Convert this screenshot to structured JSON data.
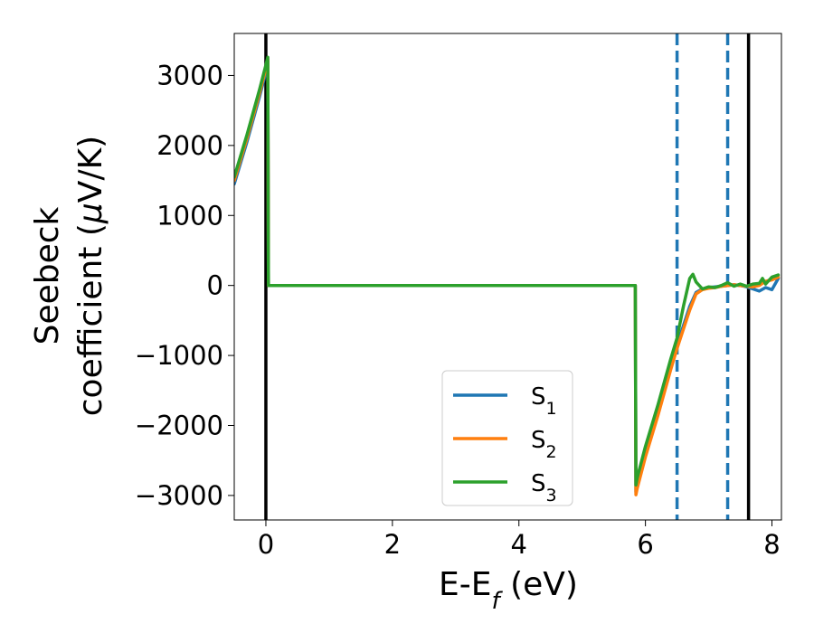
{
  "chart_data": {
    "type": "line",
    "xlabel_main": "E-E",
    "xlabel_sub": "f",
    "xlabel_unit": " (eV)",
    "ylabel_line1": "Seebeck",
    "ylabel_line2_text": "coefficient  (",
    "ylabel_line2_mu": "μ",
    "ylabel_line2_unit": "V/K)",
    "xlim": [
      -0.5,
      8.15
    ],
    "ylim": [
      -3350,
      3600
    ],
    "xticks": [
      0,
      2,
      4,
      6,
      8
    ],
    "yticks": [
      -3000,
      -2000,
      -1000,
      0,
      1000,
      2000,
      3000
    ],
    "xtick_labels": [
      "0",
      "2",
      "4",
      "6",
      "8"
    ],
    "ytick_labels": [
      "−3000",
      "−2000",
      "−1000",
      "0",
      "1000",
      "2000",
      "3000"
    ],
    "vlines": [
      {
        "x": 0.0,
        "style": "solid",
        "color": "#000000"
      },
      {
        "x": 7.63,
        "style": "solid",
        "color": "#000000"
      },
      {
        "x": 6.5,
        "style": "dashed",
        "color": "#1f77b4"
      },
      {
        "x": 7.3,
        "style": "dashed",
        "color": "#1f77b4"
      }
    ],
    "legend_position": "lower-center",
    "series": [
      {
        "name": "S",
        "sub": "1",
        "color": "#1f77b4",
        "x": [
          -0.5,
          -0.3,
          -0.1,
          0.0,
          0.03,
          0.04,
          1.0,
          2.0,
          3.0,
          4.0,
          5.0,
          5.84,
          5.85,
          5.87,
          6.0,
          6.2,
          6.4,
          6.5,
          6.7,
          6.8,
          6.9,
          7.0,
          7.1,
          7.2,
          7.3,
          7.4,
          7.5,
          7.6,
          7.7,
          7.8,
          7.9,
          8.0,
          8.1
        ],
        "y": [
          1450,
          2050,
          2700,
          3050,
          3200,
          0,
          0,
          0,
          0,
          0,
          0,
          0,
          -2950,
          -2850,
          -2400,
          -1800,
          -1150,
          -850,
          -300,
          -100,
          -50,
          -30,
          -20,
          -10,
          0,
          10,
          0,
          -20,
          -50,
          -80,
          -30,
          -60,
          100
        ]
      },
      {
        "name": "S",
        "sub": "2",
        "color": "#ff7f0e",
        "x": [
          -0.5,
          -0.3,
          -0.1,
          0.0,
          0.03,
          0.04,
          1.0,
          2.0,
          3.0,
          4.0,
          5.0,
          5.84,
          5.85,
          5.87,
          6.0,
          6.2,
          6.4,
          6.5,
          6.7,
          6.8,
          6.9,
          7.0,
          7.1,
          7.2,
          7.3,
          7.4,
          7.5,
          7.6,
          7.7,
          7.8,
          7.9,
          8.0,
          8.1
        ],
        "y": [
          1500,
          2100,
          2750,
          3100,
          3230,
          0,
          0,
          0,
          0,
          0,
          0,
          0,
          -2990,
          -2900,
          -2450,
          -1850,
          -1200,
          -900,
          -350,
          -120,
          -60,
          -40,
          -30,
          -10,
          0,
          10,
          0,
          -10,
          -20,
          0,
          60,
          80,
          120
        ]
      },
      {
        "name": "S",
        "sub": "3",
        "color": "#2ca02c",
        "x": [
          -0.5,
          -0.3,
          -0.1,
          0.0,
          0.03,
          0.04,
          1.0,
          2.0,
          3.0,
          4.0,
          5.0,
          5.84,
          5.85,
          5.87,
          6.0,
          6.2,
          6.4,
          6.5,
          6.6,
          6.7,
          6.75,
          6.8,
          6.9,
          7.0,
          7.1,
          7.2,
          7.3,
          7.4,
          7.5,
          7.6,
          7.7,
          7.8,
          7.85,
          7.9,
          8.0,
          8.1
        ],
        "y": [
          1550,
          2150,
          2800,
          3150,
          3260,
          0,
          0,
          0,
          0,
          0,
          0,
          0,
          -2850,
          -2750,
          -2300,
          -1700,
          -1050,
          -750,
          -300,
          100,
          160,
          50,
          -50,
          -20,
          -30,
          0,
          40,
          -10,
          20,
          -10,
          20,
          30,
          100,
          20,
          120,
          150
        ]
      }
    ]
  }
}
